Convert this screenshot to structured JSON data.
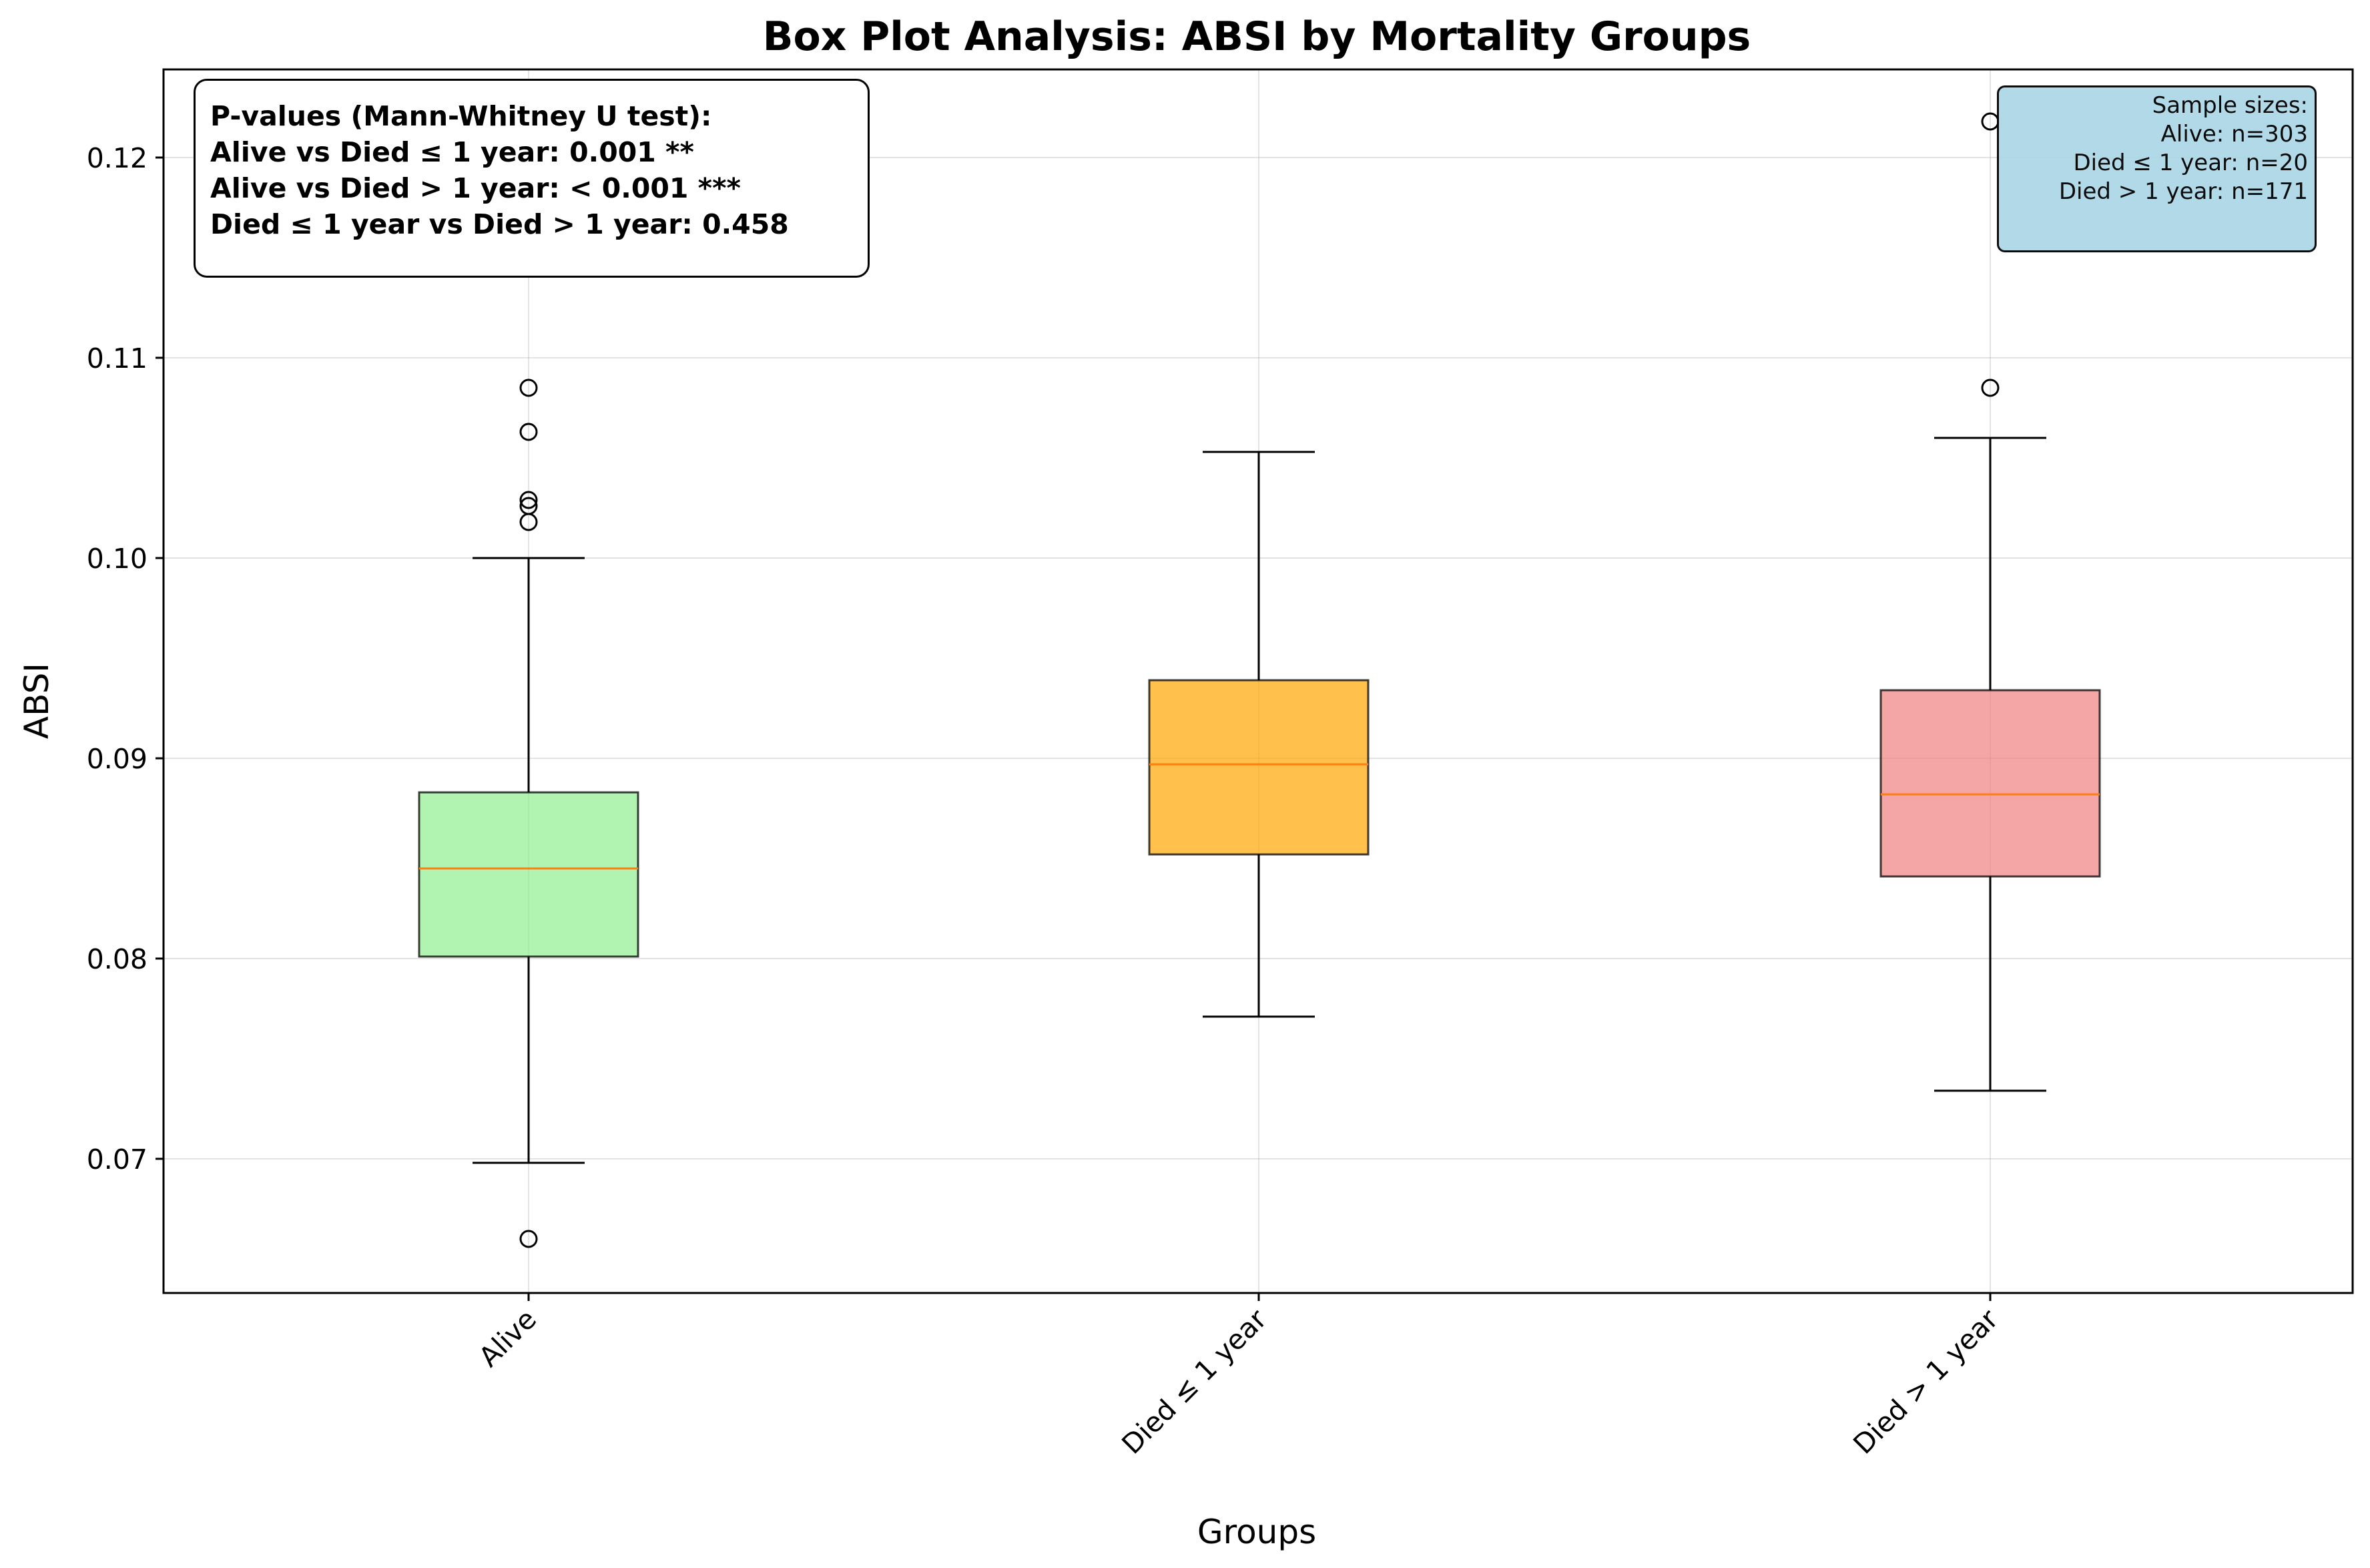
{
  "chart_data": {
    "type": "box",
    "title": "Box Plot Analysis: ABSI by Mortality Groups",
    "xlabel": "Groups",
    "ylabel": "ABSI",
    "ylim": [
      0.0633,
      0.1244
    ],
    "yticks": [
      0.07,
      0.08,
      0.09,
      0.1,
      0.11,
      0.12
    ],
    "ytick_labels": [
      "0.07",
      "0.08",
      "0.09",
      "0.10",
      "0.11",
      "0.12"
    ],
    "grid": true,
    "groups": [
      {
        "name": "Alive",
        "color": "#90ee90",
        "whisker_low": 0.0698,
        "q1": 0.0801,
        "median": 0.0845,
        "q3": 0.0883,
        "whisker_high": 0.1,
        "outliers": [
          0.1085,
          0.1063,
          0.1029,
          0.1026,
          0.1018,
          0.066
        ]
      },
      {
        "name": "Died ≤ 1 year",
        "color": "#ffa500",
        "whisker_low": 0.0771,
        "q1": 0.0852,
        "median": 0.0897,
        "q3": 0.0939,
        "whisker_high": 0.1053,
        "outliers": []
      },
      {
        "name": "Died > 1 year",
        "color": "#f08080",
        "whisker_low": 0.0734,
        "q1": 0.0841,
        "median": 0.0882,
        "q3": 0.0934,
        "whisker_high": 0.106,
        "outliers": [
          0.1085,
          0.1218
        ]
      }
    ],
    "median_color": "#ff7f0e",
    "annotations": {
      "pvalues": [
        "P-values (Mann-Whitney U test):",
        "Alive vs Died ≤ 1 year: 0.001 **",
        "Alive vs Died > 1 year: < 0.001 ***",
        "Died ≤ 1 year vs Died > 1 year: 0.458"
      ],
      "sample_sizes": [
        "Sample sizes:",
        "Alive: n=303",
        "Died ≤ 1 year: n=20",
        "Died > 1 year: n=171"
      ]
    }
  }
}
